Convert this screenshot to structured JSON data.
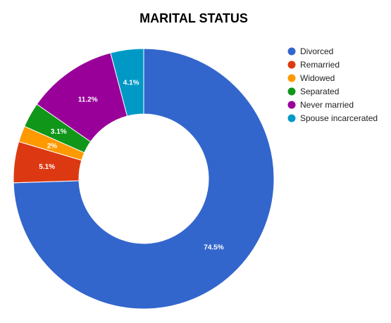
{
  "chart_data": {
    "type": "pie",
    "donut": true,
    "title": "MARITAL STATUS",
    "legend_position": "right",
    "slices": [
      {
        "label": "Divorced",
        "value": 74.5,
        "display": "74.5%",
        "color": "#3366cc"
      },
      {
        "label": "Remarried",
        "value": 5.1,
        "display": "5.1%",
        "color": "#dc3912"
      },
      {
        "label": "Widowed",
        "value": 2.0,
        "display": "2%",
        "color": "#ff9900"
      },
      {
        "label": "Separated",
        "value": 3.1,
        "display": "3.1%",
        "color": "#109618"
      },
      {
        "label": "Never married",
        "value": 11.2,
        "display": "11.2%",
        "color": "#990099"
      },
      {
        "label": "Spouse incarcerated",
        "value": 4.1,
        "display": "4.1%",
        "color": "#0099c6"
      }
    ]
  }
}
